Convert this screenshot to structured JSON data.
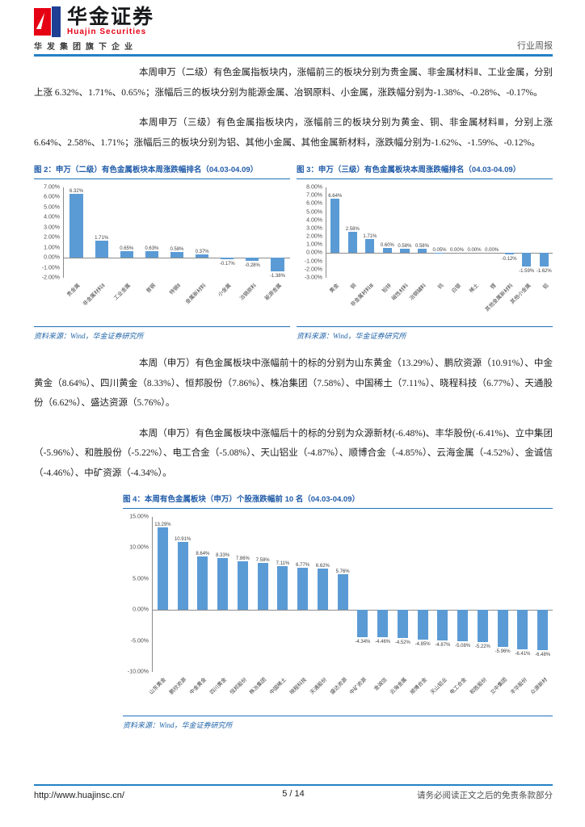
{
  "header": {
    "brand_cn": "华金证券",
    "brand_en": "Huajin Securities",
    "subtitle": "华发集团旗下企业",
    "report_type": "行业周报"
  },
  "paragraphs": {
    "p1": "本周申万（二级）有色金属指板块内，涨幅前三的板块分别为贵金属、非金属材料Ⅱ、工业金属，分别上涨 6.32%、1.71%、0.65%；涨幅后三的板块分别为能源金属、冶钢原料、小金属，涨跌幅分别为-1.38%、-0.28%、-0.17%。",
    "p2": "本周申万（三级）有色金属指板块内，涨幅前三的板块分别为黄金、铜、非金属材料Ⅲ，分别上涨 6.64%、2.58%、1.71%；涨幅后三的板块分别为铝、其他小金属、其他金属新材料，涨跌幅分别为-1.62%、-1.59%、-0.12%。",
    "p3": "本周（申万）有色金属板块中涨幅前十的标的分别为山东黄金（13.29%）、鹏欣资源（10.91%）、中金黄金（8.64%）、四川黄金（8.33%）、恒邦股份（7.86%）、株冶集团（7.58%）、中国稀土（7.11%）、晓程科技（6.77%）、天通股份（6.62%）、盛达资源（5.76%）。",
    "p4": "本周（申万）有色金属板块中涨幅后十的标的分别为众源新材(-6.48%)、丰华股份(-6.41%)、立中集团（-5.96%）、和胜股份（-5.22%）、电工合金（-5.08%）、天山铝业（-4.87%）、顺博合金（-4.85%）、云海金属（-4.52%）、金诚信（-4.46%）、中矿资源（-4.34%）。"
  },
  "figures": {
    "fig2": {
      "title": "图 2：申万（二级）有色金属板块本周涨跌幅排名（04.03-04.09）",
      "source": "资料来源：Wind，华金证券研究所"
    },
    "fig3": {
      "title": "图 3：申万（三级）有色金属板块本周涨跌幅排名（04.03-04.09）",
      "source": "资料来源：Wind，华金证券研究所"
    },
    "fig4": {
      "title": "图 4：本周有色金属板块（申万）个股涨跌幅前 10 名（04.03-04.09）",
      "source": "资料来源：Wind，华金证券研究所"
    }
  },
  "chart_data": [
    {
      "type": "bar",
      "title": "申万（二级）有色金属板块本周涨跌幅排名（04.03-04.09）",
      "categories": [
        "贵金属",
        "非金属材料Ⅱ",
        "工业金属",
        "普钢",
        "特钢Ⅱ",
        "金属新材料",
        "小金属",
        "冶钢原料",
        "能源金属"
      ],
      "values": [
        6.32,
        1.71,
        0.65,
        0.63,
        0.58,
        0.37,
        -0.17,
        -0.28,
        -1.38
      ],
      "value_labels": [
        "6.32%",
        "1.71%",
        "0.65%",
        "0.63%",
        "0.58%",
        "0.37%",
        "-0.17%",
        "-0.28%",
        "-1.38%"
      ],
      "ylim": [
        -2,
        7
      ],
      "yticks": [
        {
          "value": 7,
          "label": "7.00%"
        },
        {
          "value": 6,
          "label": "6.00%"
        },
        {
          "value": 5,
          "label": "5.00%"
        },
        {
          "value": 4,
          "label": "4.00%"
        },
        {
          "value": 3,
          "label": "3.00%"
        },
        {
          "value": 2,
          "label": "2.00%"
        },
        {
          "value": 1,
          "label": "1.00%"
        },
        {
          "value": 0,
          "label": "0.00%"
        },
        {
          "value": -1,
          "label": "-1.00%"
        },
        {
          "value": -2,
          "label": "-2.00%"
        }
      ],
      "grid": false,
      "legend": false
    },
    {
      "type": "bar",
      "title": "申万（三级）有色金属板块本周涨跌幅排名（04.03-04.09）",
      "categories": [
        "黄金",
        "铜",
        "非金属材料Ⅲ",
        "铅锌",
        "磁性材料",
        "冶钢辅料",
        "钨",
        "白银",
        "稀土",
        "锂",
        "其他金属新材料",
        "其他小金属",
        "铝"
      ],
      "values": [
        6.64,
        2.58,
        1.71,
        0.6,
        0.58,
        0.58,
        0.05,
        0.0,
        0.0,
        0.0,
        -0.12,
        -1.59,
        -1.62
      ],
      "value_labels": [
        "6.64%",
        "2.58%",
        "1.71%",
        "0.60%",
        "0.58%",
        "0.58%",
        "0.05%",
        "0.00%",
        "0.00%",
        "0.00%",
        "-0.12%",
        "-1.59%",
        "-1.62%"
      ],
      "ylim": [
        -3,
        8
      ],
      "yticks": [
        {
          "value": 8,
          "label": "8.00%"
        },
        {
          "value": 7,
          "label": "7.00%"
        },
        {
          "value": 6,
          "label": "6.00%"
        },
        {
          "value": 5,
          "label": "5.00%"
        },
        {
          "value": 4,
          "label": "4.00%"
        },
        {
          "value": 3,
          "label": "3.00%"
        },
        {
          "value": 2,
          "label": "2.00%"
        },
        {
          "value": 1,
          "label": "1.00%"
        },
        {
          "value": 0,
          "label": "0.00%"
        },
        {
          "value": -1,
          "label": "-1.00%"
        },
        {
          "value": -2,
          "label": "-2.00%"
        },
        {
          "value": -3,
          "label": "-3.00%"
        }
      ],
      "grid": false,
      "legend": false
    },
    {
      "type": "bar",
      "title": "本周有色金属板块（申万）个股涨跌幅前 10 名（04.03-04.09）",
      "categories": [
        "山东黄金",
        "鹏欣资源",
        "中金黄金",
        "四川黄金",
        "恒邦股份",
        "株冶集团",
        "中国稀土",
        "晓程科技",
        "天通股份",
        "盛达资源",
        "中矿资源",
        "金诚信",
        "云海金属",
        "顺博合金",
        "天山铝业",
        "电工合金",
        "和胜股份",
        "立中集团",
        "丰华股份",
        "众源新材"
      ],
      "values": [
        13.29,
        10.91,
        8.64,
        8.33,
        7.86,
        7.58,
        7.11,
        6.77,
        6.62,
        5.76,
        -4.34,
        -4.46,
        -4.52,
        -4.85,
        -4.87,
        -5.08,
        -5.22,
        -5.96,
        -6.41,
        -6.48
      ],
      "value_labels": [
        "13.29%",
        "10.91%",
        "8.64%",
        "8.33%",
        "7.86%",
        "7.58%",
        "7.11%",
        "6.77%",
        "6.62%",
        "5.76%",
        "-4.34%",
        "-4.46%",
        "-4.52%",
        "-4.85%",
        "-4.87%",
        "-5.08%",
        "-5.22%",
        "-5.96%",
        "-6.41%",
        "-6.48%"
      ],
      "ylim": [
        -10,
        15
      ],
      "yticks": [
        {
          "value": 15,
          "label": "15.00%"
        },
        {
          "value": 10,
          "label": "10.00%"
        },
        {
          "value": 5,
          "label": "5.00%"
        },
        {
          "value": 0,
          "label": "0.00%"
        },
        {
          "value": -5,
          "label": "-5.00%"
        },
        {
          "value": -10,
          "label": "-10.00%"
        }
      ],
      "grid": false,
      "legend": false
    }
  ],
  "footer": {
    "url": "http://www.huajinsc.cn/",
    "page": "5 / 14",
    "disclaimer": "请务必阅读正文之后的免责条款部分"
  },
  "colors": {
    "bar_blue": "#5B9BD5",
    "accent_blue": "#2581c4",
    "title_blue": "#1f5ba8",
    "brand_red": "#e60013",
    "brand_blue": "#1f3f94"
  }
}
